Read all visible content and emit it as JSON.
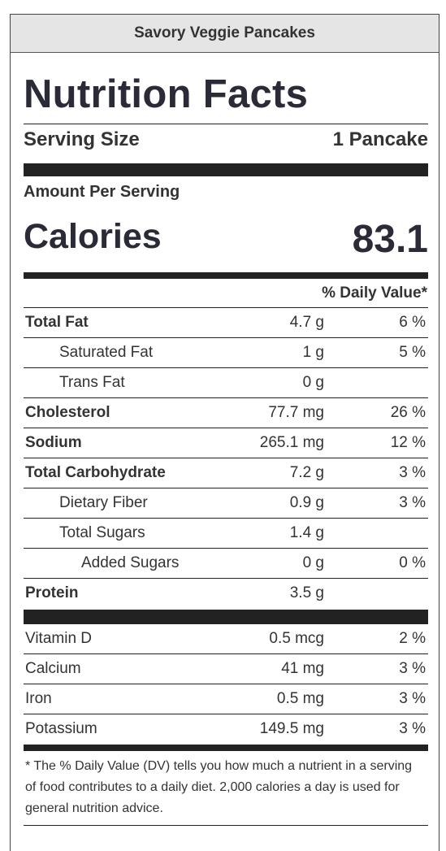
{
  "recipe_name": "Savory Veggie Pancakes",
  "title": "Nutrition Facts",
  "serving": {
    "label": "Serving Size",
    "value": "1 Pancake"
  },
  "amount_per_serving": "Amount Per Serving",
  "calories": {
    "label": "Calories",
    "value": "83.1"
  },
  "daily_value_header": "% Daily Value*",
  "nutrients": [
    {
      "name": "Total Fat",
      "amount": "4.7 g",
      "dv": "6 %",
      "bold": true,
      "indent": 0
    },
    {
      "name": "Saturated Fat",
      "amount": "1 g",
      "dv": "5 %",
      "bold": false,
      "indent": 1
    },
    {
      "name": "Trans Fat",
      "amount": "0 g",
      "dv": "",
      "bold": false,
      "indent": 1
    },
    {
      "name": "Cholesterol",
      "amount": "77.7 mg",
      "dv": "26 %",
      "bold": true,
      "indent": 0
    },
    {
      "name": "Sodium",
      "amount": "265.1 mg",
      "dv": "12 %",
      "bold": true,
      "indent": 0
    },
    {
      "name": "Total Carbohydrate",
      "amount": "7.2 g",
      "dv": "3 %",
      "bold": true,
      "indent": 0
    },
    {
      "name": "Dietary Fiber",
      "amount": "0.9 g",
      "dv": "3 %",
      "bold": false,
      "indent": 1
    },
    {
      "name": "Total Sugars",
      "amount": "1.4 g",
      "dv": "",
      "bold": false,
      "indent": 1
    },
    {
      "name": "Added Sugars",
      "amount": "0 g",
      "dv": "0 %",
      "bold": false,
      "indent": 2
    },
    {
      "name": "Protein",
      "amount": "3.5 g",
      "dv": "",
      "bold": true,
      "indent": 0
    }
  ],
  "vitamins": [
    {
      "name": "Vitamin D",
      "amount": "0.5 mcg",
      "dv": "2 %"
    },
    {
      "name": "Calcium",
      "amount": "41 mg",
      "dv": "3 %"
    },
    {
      "name": "Iron",
      "amount": "0.5 mg",
      "dv": "3 %"
    },
    {
      "name": "Potassium",
      "amount": "149.5 mg",
      "dv": "3 %"
    }
  ],
  "footnote": "* The % Daily Value (DV) tells you how much a nutrient in a serving of food contributes to a daily diet. 2,000 calories a day is used for general nutrition advice."
}
